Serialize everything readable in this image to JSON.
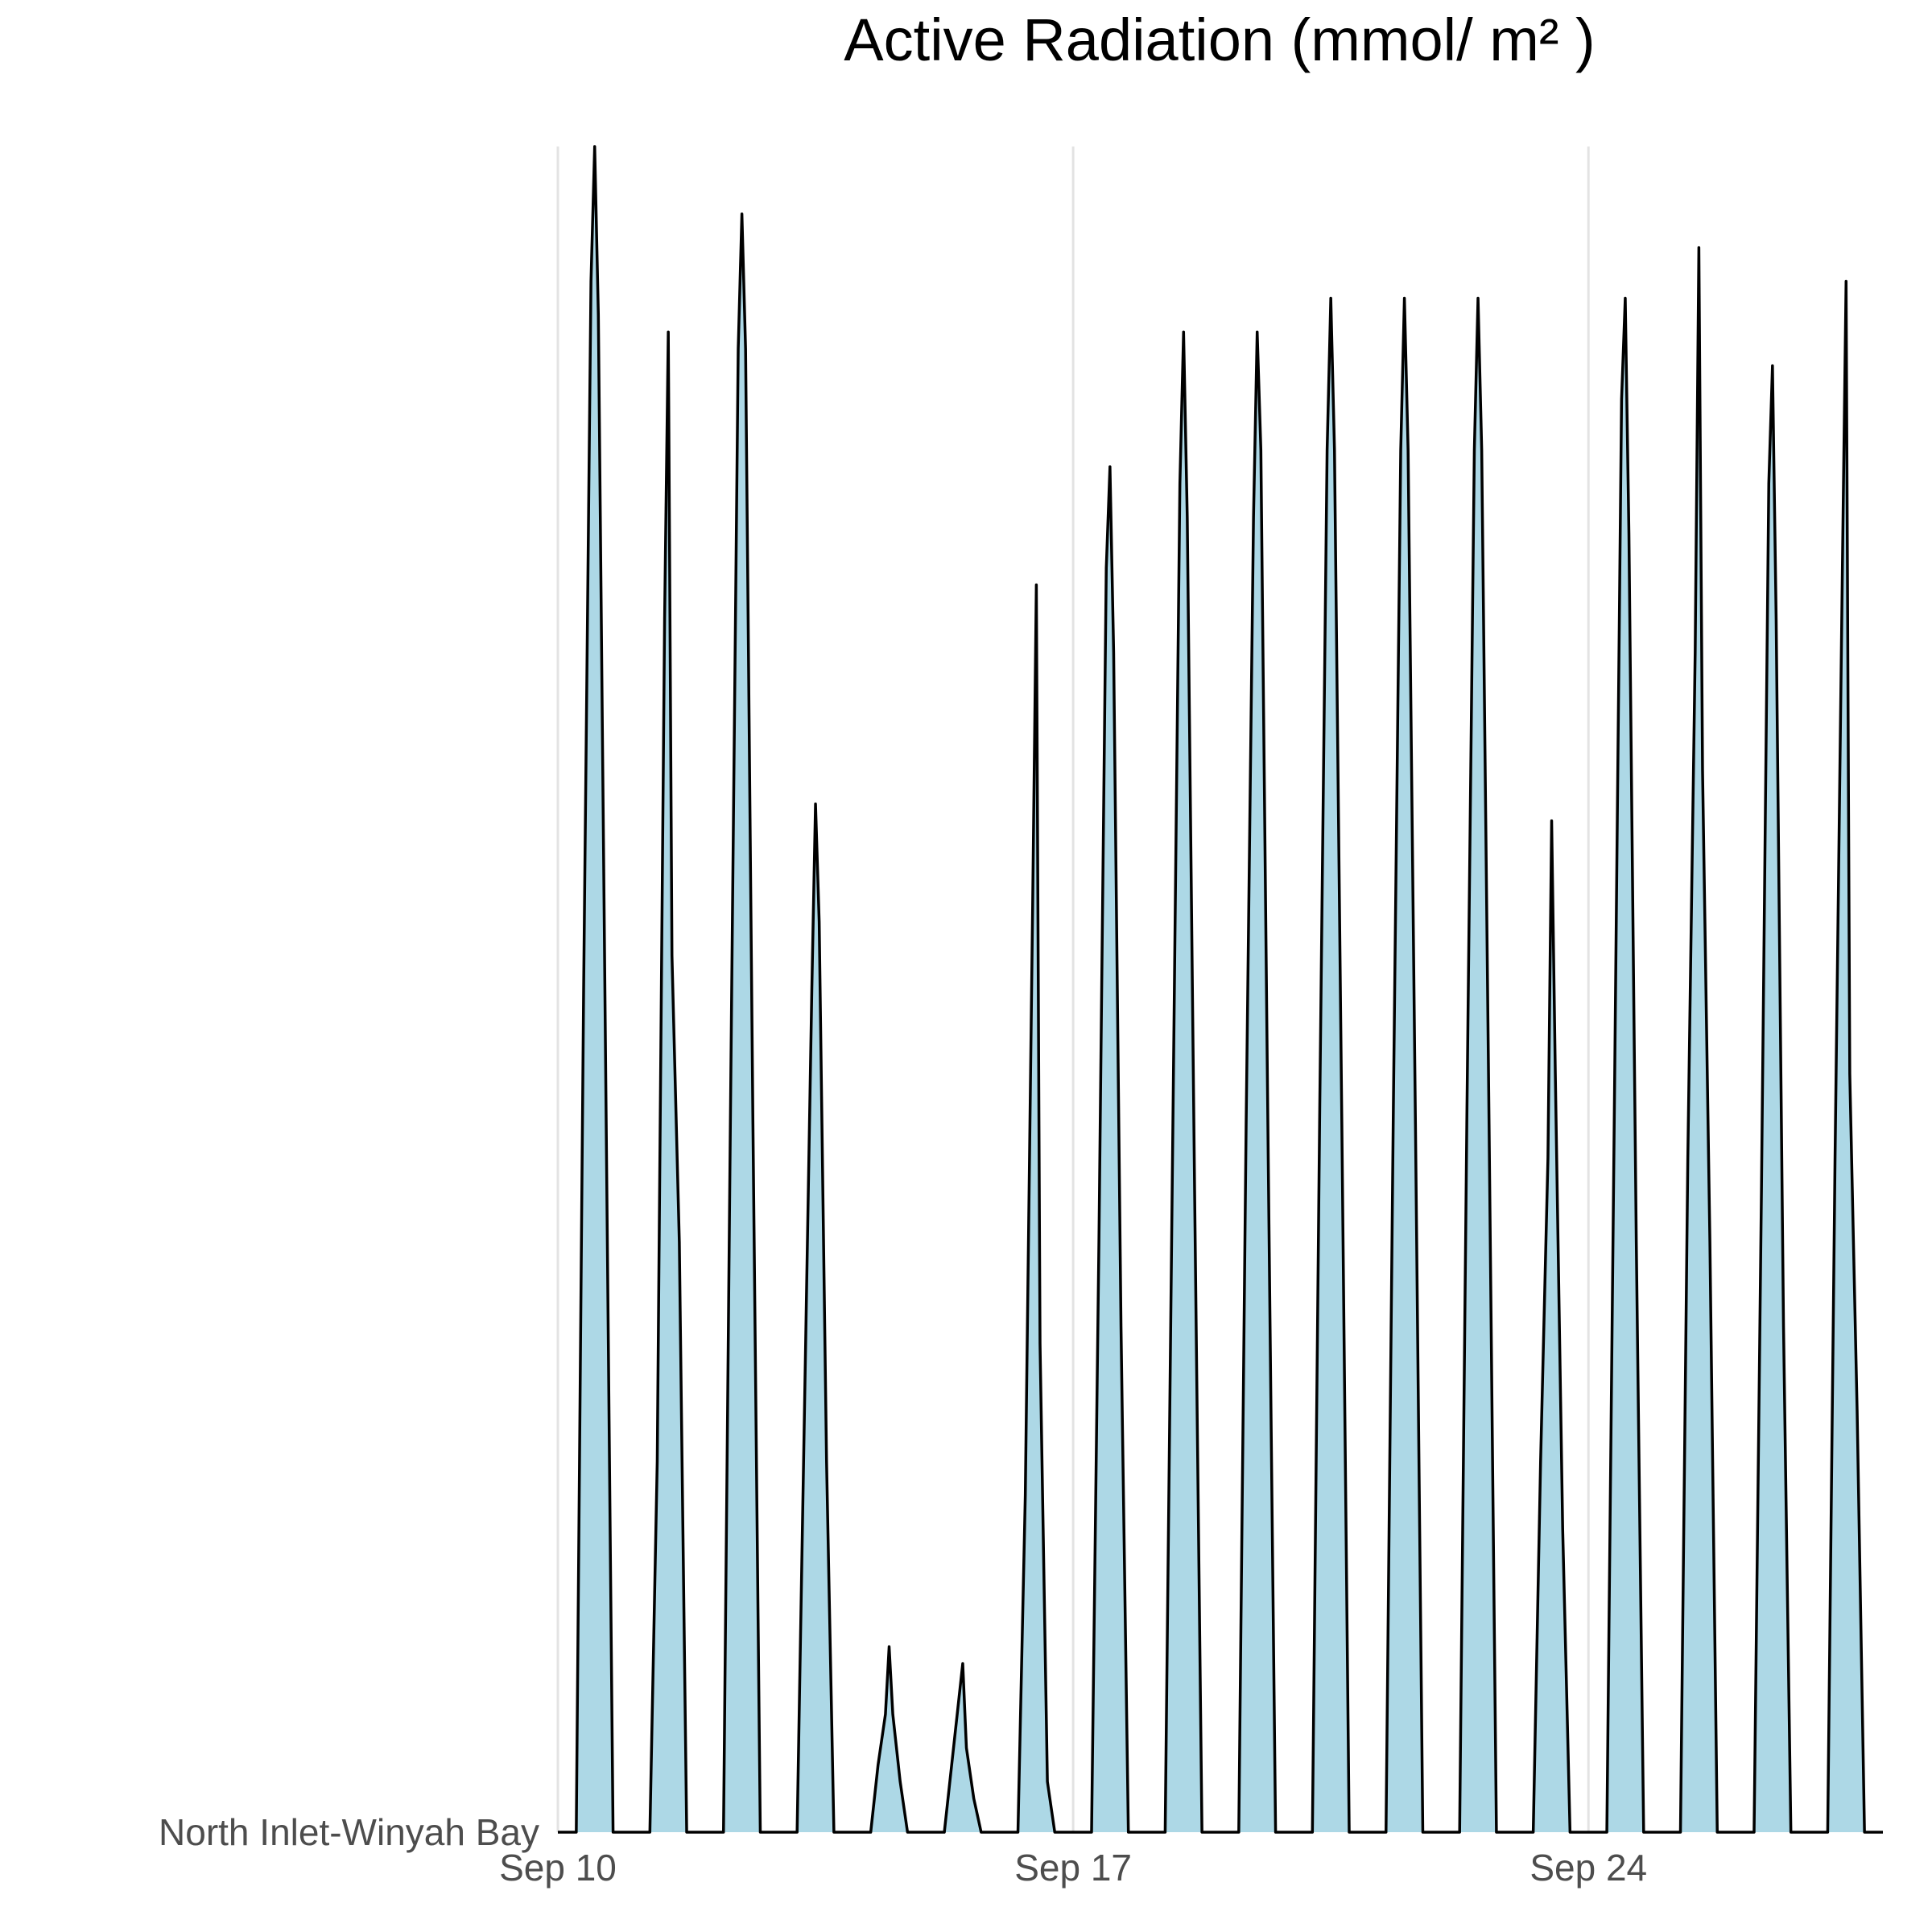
{
  "chart_data": {
    "type": "area",
    "title": "Active Radiation (mmol/ m² )",
    "x": [
      10,
      10.25,
      10.35,
      10.45,
      10.5,
      10.55,
      10.65,
      10.75,
      11.25,
      11.35,
      11.45,
      11.5,
      11.55,
      11.65,
      11.75,
      12.25,
      12.35,
      12.45,
      12.5,
      12.55,
      12.65,
      12.75,
      13.25,
      13.35,
      13.45,
      13.5,
      13.55,
      13.65,
      13.75,
      14.25,
      14.35,
      14.45,
      14.5,
      14.55,
      14.65,
      14.75,
      15.25,
      15.35,
      15.45,
      15.5,
      15.55,
      15.65,
      15.75,
      16.25,
      16.35,
      16.45,
      16.5,
      16.55,
      16.65,
      16.75,
      17.25,
      17.35,
      17.45,
      17.5,
      17.55,
      17.65,
      17.75,
      18.25,
      18.35,
      18.45,
      18.5,
      18.55,
      18.65,
      18.75,
      19.25,
      19.35,
      19.45,
      19.5,
      19.55,
      19.65,
      19.75,
      20.25,
      20.35,
      20.45,
      20.5,
      20.55,
      20.65,
      20.75,
      21.25,
      21.35,
      21.45,
      21.5,
      21.55,
      21.65,
      21.75,
      22.25,
      22.35,
      22.45,
      22.5,
      22.55,
      22.65,
      22.75,
      23.25,
      23.35,
      23.45,
      23.5,
      23.55,
      23.65,
      23.75,
      24.25,
      24.35,
      24.45,
      24.5,
      24.55,
      24.65,
      24.75,
      25.25,
      25.35,
      25.45,
      25.5,
      25.55,
      25.65,
      25.75,
      26.25,
      26.35,
      26.45,
      26.5,
      26.55,
      26.65,
      26.75,
      27.25,
      27.35,
      27.45,
      27.5,
      27.55,
      27.65,
      27.75,
      28
    ],
    "series": [
      {
        "name": "North Inlet-Winyah Bay",
        "color": "#add8e6",
        "line_color": "#000000",
        "values": [
          0,
          0,
          50,
          92,
          100,
          90,
          45,
          0,
          0,
          22,
          72,
          89,
          52,
          35,
          0,
          0,
          45,
          88,
          96,
          88,
          42,
          0,
          0,
          25,
          50,
          61,
          54,
          22,
          0,
          0,
          4,
          7,
          11,
          7,
          3,
          0,
          0,
          4,
          8,
          10,
          5,
          2,
          0,
          0,
          20,
          55,
          74,
          29,
          3,
          0,
          0,
          35,
          75,
          81,
          70,
          30,
          0,
          0,
          40,
          80,
          89,
          78,
          38,
          0,
          0,
          42,
          78,
          89,
          82,
          40,
          0,
          0,
          43,
          82,
          91,
          82,
          42,
          0,
          0,
          43,
          82,
          91,
          82,
          42,
          0,
          0,
          43,
          82,
          91,
          82,
          42,
          0,
          0,
          22,
          40,
          60,
          45,
          18,
          0,
          0,
          42,
          85,
          91,
          77,
          35,
          0,
          0,
          40,
          70,
          94,
          63,
          35,
          0,
          0,
          38,
          80,
          87,
          72,
          30,
          0,
          0,
          40,
          75,
          92,
          45,
          25,
          0,
          0
        ]
      }
    ],
    "xlim": [
      10,
      28
    ],
    "xticks": [
      {
        "value": 10,
        "label": "Sep 10"
      },
      {
        "value": 17,
        "label": "Sep 17"
      },
      {
        "value": 24,
        "label": "Sep 24"
      }
    ],
    "ylim": [
      0,
      100
    ],
    "grid": true
  }
}
